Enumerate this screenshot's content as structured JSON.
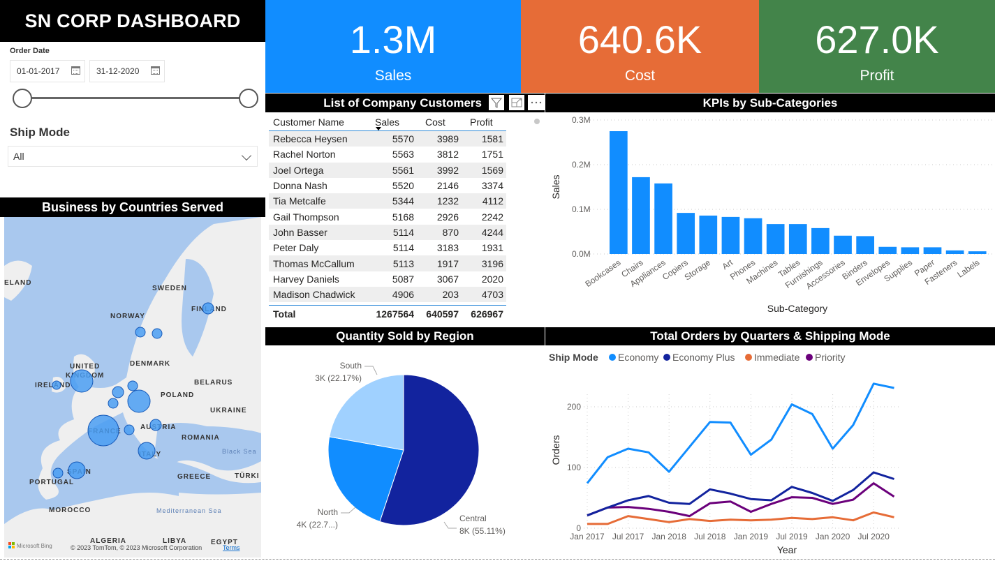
{
  "header": {
    "title": "SN CORP DASHBOARD"
  },
  "filters": {
    "order_date_label": "Order Date",
    "start_date": "01-01-2017",
    "end_date": "31-12-2020",
    "ship_mode_label": "Ship Mode",
    "ship_mode_value": "All"
  },
  "kpis": [
    {
      "value": "1.3M",
      "label": "Sales",
      "color": "#118DFF"
    },
    {
      "value": "640.6K",
      "label": "Cost",
      "color": "#E66C37"
    },
    {
      "value": "627.0K",
      "label": "Profit",
      "color": "#43844A"
    }
  ],
  "customers": {
    "title": "List of Company Customers",
    "columns": [
      "Customer Name",
      "Sales",
      "Cost",
      "Profit"
    ],
    "rows": [
      [
        "Rebecca Heysen",
        "5570",
        "3989",
        "1581"
      ],
      [
        "Rachel Norton",
        "5563",
        "3812",
        "1751"
      ],
      [
        "Joel Ortega",
        "5561",
        "3992",
        "1569"
      ],
      [
        "Donna Nash",
        "5520",
        "2146",
        "3374"
      ],
      [
        "Tia Metcalfe",
        "5344",
        "1232",
        "4112"
      ],
      [
        "Gail Thompson",
        "5168",
        "2926",
        "2242"
      ],
      [
        "John Basser",
        "5114",
        "870",
        "4244"
      ],
      [
        "Peter Daly",
        "5114",
        "3183",
        "1931"
      ],
      [
        "Thomas McCallum",
        "5113",
        "1917",
        "3196"
      ],
      [
        "Harvey Daniels",
        "5087",
        "3067",
        "2020"
      ],
      [
        "Madison Chadwick",
        "4906",
        "203",
        "4703"
      ]
    ],
    "total": [
      "Total",
      "1267564",
      "640597",
      "626967"
    ]
  },
  "map": {
    "title": "Business by Countries Served",
    "labels": [
      "ELAND",
      "SWEDEN",
      "FINLAND",
      "NORWAY",
      "DENMARK",
      "UNITED",
      "KINGDOM",
      "IRELAND",
      "BELARUS",
      "POLAND",
      "UKRAINE",
      "FRANCE",
      "AUSTRIA",
      "ROMANIA",
      "Black Sea",
      "ITALY",
      "SPAIN",
      "PORTUGAL",
      "GREECE",
      "TÜRKI",
      "Mediterranean Sea",
      "MOROCCO",
      "ALGERIA",
      "LIBYA",
      "EGYPT"
    ],
    "attribution": "© 2023 TomTom, © 2023 Microsoft Corporation",
    "terms": "Terms",
    "bing": "Microsoft Bing"
  },
  "chart_data": [
    {
      "type": "bar",
      "title": "KPIs by Sub-Categories",
      "xlabel": "Sub-Category",
      "ylabel": "Sales",
      "ylim": [
        0,
        0.3
      ],
      "yticks": [
        "0.0M",
        "0.1M",
        "0.2M",
        "0.3M"
      ],
      "categories": [
        "Bookcases",
        "Chairs",
        "Appliances",
        "Copiers",
        "Storage",
        "Art",
        "Phones",
        "Machines",
        "Tables",
        "Furnishings",
        "Accessories",
        "Binders",
        "Envelopes",
        "Supplies",
        "Paper",
        "Fasteners",
        "Labels"
      ],
      "values": [
        0.275,
        0.172,
        0.158,
        0.092,
        0.086,
        0.083,
        0.08,
        0.067,
        0.067,
        0.058,
        0.041,
        0.04,
        0.016,
        0.015,
        0.015,
        0.008,
        0.006
      ],
      "color": "#118DFF",
      "grid": true
    },
    {
      "type": "pie",
      "title": "Quantity Sold by Region",
      "slices": [
        {
          "name": "Central",
          "label": "8K (55.11%)",
          "percent": 55.11,
          "color": "#12239E"
        },
        {
          "name": "North",
          "label": "4K (22.7...)",
          "percent": 22.72,
          "color": "#118DFF"
        },
        {
          "name": "South",
          "label": "3K (22.17%)",
          "percent": 22.17,
          "color": "#A0D1FF"
        }
      ]
    },
    {
      "type": "line",
      "title": "Total Orders by Quarters & Shipping Mode",
      "legend_title": "Ship Mode",
      "legend_position": "top-left",
      "xlabel": "Year",
      "ylabel": "Orders",
      "ylim": [
        0,
        250
      ],
      "yticks": [
        0,
        100,
        200
      ],
      "xticks": [
        "Jan 2017",
        "Jul 2017",
        "Jan 2018",
        "Jul 2018",
        "Jan 2019",
        "Jul 2019",
        "Jan 2020",
        "Jul 2020"
      ],
      "x": [
        "2017Q1",
        "2017Q2",
        "2017Q3",
        "2017Q4",
        "2018Q1",
        "2018Q2",
        "2018Q3",
        "2018Q4",
        "2019Q1",
        "2019Q2",
        "2019Q3",
        "2019Q4",
        "2020Q1",
        "2020Q2",
        "2020Q3",
        "2020Q4"
      ],
      "series": [
        {
          "name": "Economy",
          "color": "#118DFF",
          "values": [
            74,
            117,
            131,
            125,
            93,
            134,
            175,
            174,
            121,
            146,
            204,
            188,
            131,
            170,
            238,
            231
          ]
        },
        {
          "name": "Economy Plus",
          "color": "#12239E",
          "values": [
            21,
            34,
            46,
            53,
            42,
            40,
            64,
            57,
            48,
            46,
            68,
            58,
            45,
            63,
            92,
            81
          ]
        },
        {
          "name": "Immediate",
          "color": "#E66C37",
          "values": [
            7,
            7,
            20,
            15,
            10,
            15,
            12,
            14,
            13,
            14,
            17,
            15,
            18,
            13,
            26,
            18
          ]
        },
        {
          "name": "Priority",
          "color": "#6B007B",
          "values": [
            21,
            34,
            35,
            32,
            27,
            20,
            41,
            44,
            27,
            40,
            51,
            50,
            40,
            47,
            74,
            52
          ]
        }
      ],
      "grid": true
    }
  ]
}
